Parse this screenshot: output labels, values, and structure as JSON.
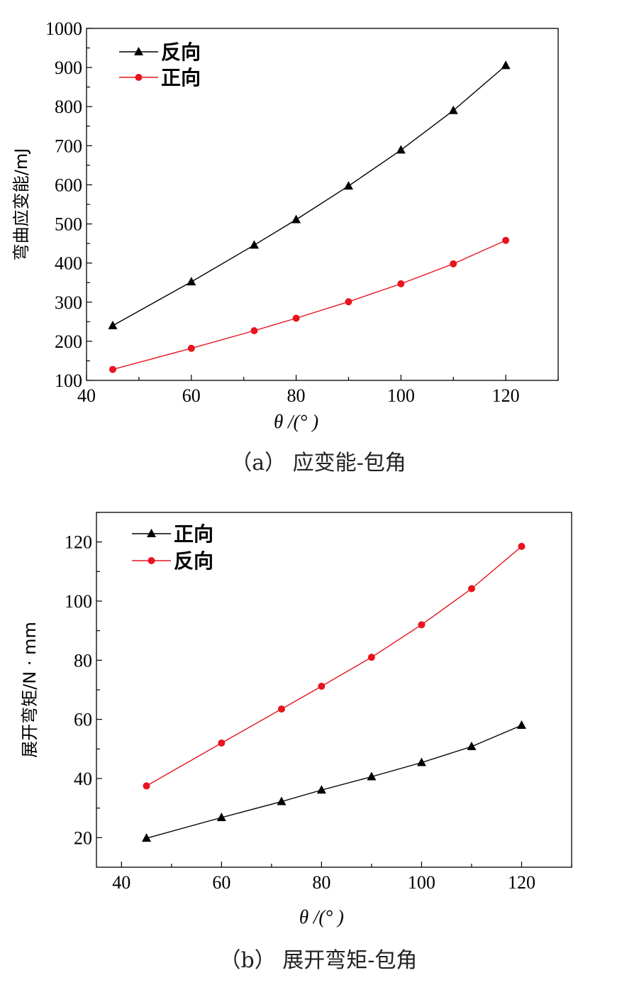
{
  "chart_data": [
    {
      "type": "line",
      "caption": "（a） 应变能-包角",
      "xlabel": "θ /(° )",
      "ylabel": "弯曲应变能/mJ",
      "xlim": [
        40,
        130
      ],
      "ylim": [
        100,
        1000
      ],
      "xticks": [
        40,
        60,
        80,
        100,
        120
      ],
      "yticks": [
        100,
        200,
        300,
        400,
        500,
        600,
        700,
        800,
        900,
        1000
      ],
      "legend_position": "top-left",
      "grid": false,
      "series": [
        {
          "name": "反向",
          "color": "#000000",
          "marker": "triangle",
          "x": [
            45,
            60,
            72,
            80,
            90,
            100,
            110,
            120
          ],
          "values": [
            240,
            352,
            446,
            511,
            597,
            689,
            790,
            905
          ]
        },
        {
          "name": "正向",
          "color": "#e8141e",
          "marker": "circle",
          "x": [
            45,
            60,
            72,
            80,
            90,
            100,
            110,
            120
          ],
          "values": [
            128,
            182,
            227,
            259,
            301,
            347,
            398,
            458
          ]
        }
      ]
    },
    {
      "type": "line",
      "caption": "（b） 展开弯矩-包角",
      "xlabel": "θ /(° )",
      "ylabel": "展开弯矩/N · mm",
      "xlim": [
        35,
        130
      ],
      "ylim": [
        10,
        130
      ],
      "xticks": [
        40,
        60,
        80,
        100,
        120
      ],
      "yticks": [
        20,
        40,
        60,
        80,
        100,
        120
      ],
      "legend_position": "top-left",
      "grid": false,
      "series": [
        {
          "name": "正向",
          "color": "#000000",
          "marker": "triangle",
          "x": [
            45,
            60,
            72,
            80,
            90,
            100,
            110,
            120
          ],
          "values": [
            19.8,
            26.8,
            32.2,
            36.1,
            40.6,
            45.4,
            50.8,
            58.0
          ]
        },
        {
          "name": "反向",
          "color": "#e8141e",
          "marker": "circle",
          "x": [
            45,
            60,
            72,
            80,
            90,
            100,
            110,
            120
          ],
          "values": [
            37.5,
            52.0,
            63.5,
            71.2,
            81.0,
            92.0,
            104.2,
            118.5
          ]
        }
      ]
    }
  ]
}
